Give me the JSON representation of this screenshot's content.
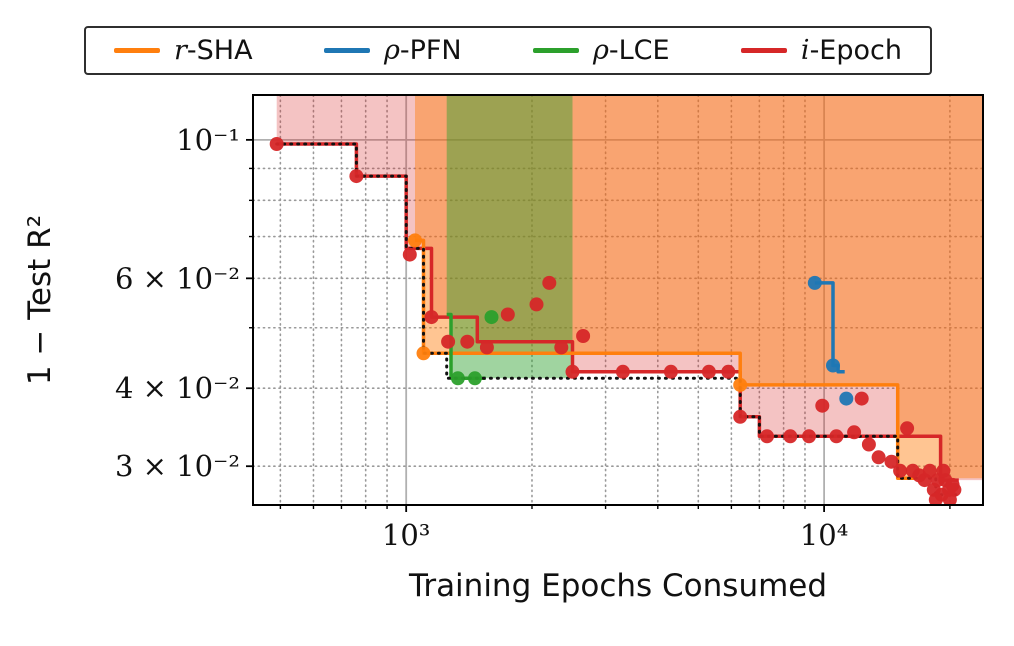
{
  "legend": {
    "items": [
      {
        "color": "#ff7f0e",
        "math": "r",
        "text": "-SHA"
      },
      {
        "color": "#1f77b4",
        "math": "ρ",
        "text": "-PFN"
      },
      {
        "color": "#2ca02c",
        "math": "ρ",
        "text": "-LCE"
      },
      {
        "color": "#d62728",
        "math": "i",
        "text": "-Epoch"
      }
    ]
  },
  "chart_data": {
    "type": "line",
    "title": "",
    "xlabel": "Training Epochs Consumed",
    "ylabel": "1 − Test R²",
    "x_scale": "log",
    "y_scale": "log",
    "xlim": [
      430,
      24000
    ],
    "ylim": [
      0.026,
      0.118
    ],
    "grid": true,
    "x_ticks": [
      {
        "value": 1000,
        "label": "10³"
      },
      {
        "value": 10000,
        "label": "10⁴"
      }
    ],
    "y_ticks": [
      {
        "value": 0.1,
        "label": "10⁻¹"
      },
      {
        "value": 0.06,
        "label": "6 × 10⁻²"
      },
      {
        "value": 0.04,
        "label": "4 × 10⁻²"
      },
      {
        "value": 0.03,
        "label": "3 × 10⁻²"
      }
    ],
    "x_minor_ticks": [
      500,
      600,
      700,
      800,
      900,
      2000,
      3000,
      4000,
      5000,
      6000,
      7000,
      8000,
      9000,
      20000
    ],
    "y_minor_ticks": [
      0.09,
      0.08,
      0.07,
      0.05
    ],
    "series": [
      {
        "name": "i-Epoch",
        "color": "#d62728",
        "style": "solid",
        "width": 3.5,
        "points": [
          [
            490,
            0.0985
          ],
          [
            760,
            0.0875
          ],
          [
            1000,
            0.067
          ],
          [
            1150,
            0.052
          ],
          [
            1480,
            0.0475
          ],
          [
            2500,
            0.0425
          ],
          [
            6300,
            0.036
          ],
          [
            7000,
            0.0335
          ],
          [
            19000,
            0.0285
          ]
        ],
        "end_x": 21000
      },
      {
        "name": "r-SHA",
        "color": "#ff7f0e",
        "style": "solid",
        "width": 3.5,
        "points": [
          [
            1050,
            0.069
          ],
          [
            1100,
            0.0455
          ],
          [
            6300,
            0.0405
          ],
          [
            15000,
            0.0287
          ]
        ],
        "end_x": 16500
      },
      {
        "name": "rho-PFN",
        "color": "#1f77b4",
        "style": "solid",
        "width": 3.5,
        "points": [
          [
            9500,
            0.059
          ],
          [
            10500,
            0.0435
          ],
          [
            10800,
            0.0425
          ]
        ],
        "end_x": 11200
      },
      {
        "name": "rho-LCE",
        "color": "#2ca02c",
        "style": "solid",
        "width": 3.5,
        "points": [
          [
            1250,
            0.0525
          ],
          [
            1280,
            0.0415
          ]
        ],
        "end_x": 1550
      },
      {
        "name": "incumbent-best",
        "color": "#111111",
        "style": "dotted",
        "width": 3,
        "points": [
          [
            490,
            0.0985
          ],
          [
            760,
            0.0875
          ],
          [
            1000,
            0.067
          ],
          [
            1100,
            0.0455
          ],
          [
            1250,
            0.0415
          ],
          [
            6300,
            0.036
          ],
          [
            7000,
            0.0335
          ],
          [
            15000,
            0.0287
          ],
          [
            18500,
            0.027
          ]
        ],
        "end_x": 21000
      }
    ],
    "regions": [
      {
        "name": "i-Epoch-regret",
        "color": "#d62728",
        "alpha": 0.28,
        "points": [
          [
            490,
            0.0985
          ],
          [
            760,
            0.0875
          ],
          [
            1000,
            0.067
          ],
          [
            1150,
            0.052
          ],
          [
            1480,
            0.0475
          ],
          [
            2500,
            0.0425
          ],
          [
            6300,
            0.036
          ],
          [
            7000,
            0.0335
          ],
          [
            19000,
            0.0285
          ]
        ],
        "end_x": 24000
      },
      {
        "name": "r-SHA-regret",
        "color": "#ff7f0e",
        "alpha": 0.45,
        "points": [
          [
            1050,
            0.069
          ],
          [
            1100,
            0.0455
          ],
          [
            6300,
            0.0405
          ],
          [
            15000,
            0.0287
          ]
        ],
        "end_x": 24000
      },
      {
        "name": "rho-LCE-regret",
        "color": "#2ca02c",
        "alpha": 0.45,
        "points": [
          [
            1250,
            0.0525
          ],
          [
            1280,
            0.0415
          ]
        ],
        "end_x": 2500
      }
    ],
    "scatter": [
      {
        "name": "i-Epoch-observations",
        "color": "#d62728",
        "points": [
          [
            490,
            0.0985
          ],
          [
            760,
            0.0875
          ],
          [
            1020,
            0.0655
          ],
          [
            1150,
            0.052
          ],
          [
            1260,
            0.0475
          ],
          [
            1400,
            0.0475
          ],
          [
            1560,
            0.0465
          ],
          [
            1750,
            0.0525
          ],
          [
            2050,
            0.0545
          ],
          [
            2200,
            0.059
          ],
          [
            2350,
            0.0465
          ],
          [
            2500,
            0.0425
          ],
          [
            2650,
            0.0485
          ],
          [
            3300,
            0.0425
          ],
          [
            4300,
            0.0425
          ],
          [
            5300,
            0.0425
          ],
          [
            5900,
            0.0425
          ],
          [
            6300,
            0.036
          ],
          [
            7300,
            0.0335
          ],
          [
            8300,
            0.0335
          ],
          [
            9200,
            0.0335
          ],
          [
            9900,
            0.0375
          ],
          [
            10700,
            0.0335
          ],
          [
            11800,
            0.034
          ],
          [
            12300,
            0.0385
          ],
          [
            12800,
            0.0325
          ],
          [
            13500,
            0.031
          ],
          [
            14500,
            0.0305
          ],
          [
            15200,
            0.0295
          ],
          [
            15800,
            0.0345
          ],
          [
            16300,
            0.0295
          ],
          [
            16900,
            0.029
          ],
          [
            17400,
            0.0285
          ],
          [
            17900,
            0.0295
          ],
          [
            18300,
            0.0275
          ],
          [
            18700,
            0.0285
          ],
          [
            19100,
            0.027
          ],
          [
            19500,
            0.0285
          ],
          [
            19900,
            0.0275
          ],
          [
            20300,
            0.028
          ],
          [
            18500,
            0.0265
          ],
          [
            19300,
            0.0295
          ],
          [
            20000,
            0.0265
          ],
          [
            20500,
            0.0275
          ]
        ]
      },
      {
        "name": "r-SHA-observations",
        "color": "#ff7f0e",
        "points": [
          [
            1050,
            0.069
          ],
          [
            1100,
            0.0455
          ],
          [
            6300,
            0.0405
          ]
        ]
      },
      {
        "name": "rho-PFN-observations",
        "color": "#1f77b4",
        "points": [
          [
            9500,
            0.059
          ],
          [
            10500,
            0.0435
          ],
          [
            11300,
            0.0385
          ]
        ]
      },
      {
        "name": "rho-LCE-observations",
        "color": "#2ca02c",
        "points": [
          [
            1600,
            0.052
          ],
          [
            1330,
            0.0415
          ],
          [
            1460,
            0.0415
          ]
        ]
      }
    ]
  }
}
